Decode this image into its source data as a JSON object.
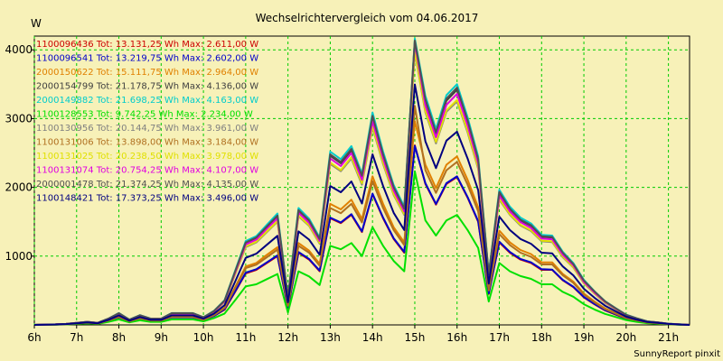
{
  "chart_data": {
    "type": "line",
    "title": "Wechselrichtervergleich vom 04.06.2017",
    "ylabel": "W",
    "xlabel": "",
    "credit": "SunnyReport pinxit",
    "ylim": [
      0,
      4200
    ],
    "xlim": [
      6,
      21.5
    ],
    "grid": true,
    "legend_position": "top-left",
    "y_ticks": [
      1000,
      2000,
      3000,
      4000
    ],
    "x_ticks": [
      6,
      7,
      8,
      9,
      10,
      11,
      12,
      13,
      14,
      15,
      16,
      17,
      18,
      19,
      20,
      21
    ],
    "x_tick_labels": [
      "6h",
      "7h",
      "8h",
      "9h",
      "10h",
      "11h",
      "12h",
      "13h",
      "14h",
      "15h",
      "16h",
      "17h",
      "18h",
      "19h",
      "20h",
      "21h"
    ],
    "x": [
      6.0,
      6.25,
      6.5,
      6.75,
      7.0,
      7.25,
      7.5,
      7.75,
      8.0,
      8.25,
      8.5,
      8.75,
      9.0,
      9.25,
      9.5,
      9.75,
      10.0,
      10.25,
      10.5,
      10.75,
      11.0,
      11.25,
      11.5,
      11.75,
      12.0,
      12.25,
      12.5,
      12.75,
      13.0,
      13.25,
      13.5,
      13.75,
      14.0,
      14.25,
      14.5,
      14.75,
      15.0,
      15.25,
      15.5,
      15.75,
      16.0,
      16.25,
      16.5,
      16.75,
      17.0,
      17.25,
      17.5,
      17.75,
      18.0,
      18.25,
      18.5,
      18.75,
      19.0,
      19.25,
      19.5,
      19.75,
      20.0,
      20.25,
      20.5,
      20.75,
      21.0,
      21.25,
      21.5
    ],
    "series": [
      {
        "name": "1100096436 Tot: 13.131,25 Wh Max: 2.611,00 W",
        "color": "#cc0000",
        "values": [
          0,
          3,
          5,
          10,
          20,
          30,
          20,
          60,
          110,
          50,
          90,
          60,
          60,
          110,
          110,
          110,
          70,
          130,
          220,
          480,
          750,
          800,
          900,
          1000,
          250,
          1050,
          950,
          780,
          1550,
          1480,
          1600,
          1350,
          1900,
          1550,
          1250,
          1050,
          2611,
          2050,
          1750,
          2050,
          2150,
          1850,
          1500,
          450,
          1200,
          1050,
          950,
          900,
          800,
          800,
          650,
          550,
          400,
          300,
          210,
          150,
          90,
          60,
          30,
          20,
          10,
          5,
          0
        ]
      },
      {
        "name": "1100096541 Tot: 13.219,75 Wh Max: 2.602,00 W",
        "color": "#0000cc",
        "values": [
          0,
          3,
          5,
          10,
          20,
          30,
          20,
          60,
          110,
          50,
          90,
          60,
          60,
          110,
          110,
          110,
          70,
          130,
          230,
          490,
          760,
          810,
          910,
          1010,
          255,
          1060,
          960,
          790,
          1560,
          1490,
          1610,
          1360,
          1910,
          1560,
          1260,
          1060,
          2602,
          2060,
          1760,
          2060,
          2160,
          1860,
          1510,
          460,
          1210,
          1060,
          960,
          910,
          810,
          805,
          655,
          555,
          405,
          305,
          215,
          155,
          95,
          62,
          32,
          22,
          11,
          5,
          0
        ]
      },
      {
        "name": "2000150622 Tot: 15.111,75 Wh Max: 2.964,00 W",
        "color": "#e08000",
        "values": [
          0,
          3,
          6,
          11,
          22,
          33,
          22,
          66,
          120,
          55,
          100,
          66,
          66,
          120,
          120,
          120,
          77,
          145,
          250,
          550,
          850,
          900,
          1020,
          1130,
          285,
          1190,
          1080,
          890,
          1760,
          1680,
          1820,
          1540,
          2160,
          1760,
          1420,
          1200,
          2964,
          2330,
          1990,
          2330,
          2450,
          2110,
          1710,
          520,
          1370,
          1200,
          1090,
          1030,
          910,
          910,
          740,
          630,
          455,
          340,
          240,
          170,
          105,
          70,
          35,
          25,
          12,
          6,
          0
        ]
      },
      {
        "name": "2000154799 Tot: 21.178,75 Wh Max: 4.136,00 W",
        "color": "#404040",
        "values": [
          0,
          5,
          8,
          15,
          30,
          45,
          30,
          90,
          170,
          75,
          140,
          90,
          90,
          170,
          170,
          170,
          110,
          200,
          350,
          770,
          1190,
          1260,
          1420,
          1580,
          400,
          1660,
          1510,
          1240,
          2460,
          2350,
          2540,
          2150,
          3020,
          2460,
          1990,
          1680,
          4136,
          3250,
          2780,
          3260,
          3420,
          2950,
          2390,
          730,
          1920,
          1680,
          1520,
          1440,
          1280,
          1270,
          1040,
          880,
          640,
          480,
          340,
          240,
          145,
          95,
          50,
          35,
          17,
          8,
          0
        ]
      },
      {
        "name": "2000149882 Tot: 21.698,25 Wh Max: 4.163,00 W",
        "color": "#00cccc",
        "values": [
          0,
          5,
          8,
          15,
          30,
          45,
          30,
          92,
          172,
          77,
          142,
          92,
          92,
          172,
          172,
          172,
          112,
          205,
          360,
          790,
          1220,
          1290,
          1455,
          1620,
          410,
          1700,
          1545,
          1270,
          2520,
          2410,
          2600,
          2200,
          3090,
          2520,
          2035,
          1720,
          4163,
          3330,
          2850,
          3340,
          3500,
          3020,
          2450,
          745,
          1965,
          1720,
          1560,
          1475,
          1310,
          1300,
          1065,
          900,
          655,
          490,
          345,
          245,
          150,
          97,
          52,
          36,
          18,
          9,
          0
        ]
      },
      {
        "name": "1100128553 Tot: 9.742,25 Wh Max: 2.234,00 W",
        "color": "#00e000",
        "values": [
          0,
          2,
          4,
          7,
          15,
          22,
          15,
          45,
          80,
          37,
          67,
          45,
          45,
          80,
          80,
          80,
          52,
          100,
          165,
          360,
          560,
          590,
          665,
          740,
          180,
          780,
          705,
          580,
          1150,
          1100,
          1190,
          1000,
          1420,
          1150,
          930,
          780,
          2234,
          1520,
          1300,
          1520,
          1600,
          1380,
          1120,
          340,
          900,
          780,
          710,
          670,
          590,
          590,
          480,
          410,
          300,
          225,
          160,
          115,
          70,
          45,
          25,
          17,
          8,
          4,
          0
        ]
      },
      {
        "name": "1100130956 Tot: 20.144,75 Wh Max: 3.961,00 W",
        "color": "#808080",
        "values": [
          0,
          5,
          8,
          14,
          28,
          42,
          28,
          86,
          160,
          72,
          132,
          86,
          86,
          160,
          160,
          160,
          104,
          190,
          335,
          735,
          1130,
          1200,
          1350,
          1500,
          380,
          1580,
          1440,
          1180,
          2340,
          2235,
          2420,
          2040,
          2870,
          2340,
          1890,
          1600,
          3961,
          3090,
          2640,
          3100,
          3250,
          2800,
          2270,
          690,
          1820,
          1600,
          1445,
          1365,
          1215,
          1205,
          985,
          835,
          605,
          455,
          320,
          230,
          140,
          90,
          48,
          33,
          16,
          8,
          0
        ]
      },
      {
        "name": "1100131006 Tot: 13.898,00 Wh Max: 3.184,00 W",
        "color": "#b07020",
        "values": [
          0,
          3,
          5,
          10,
          20,
          31,
          20,
          63,
          117,
          52,
          96,
          63,
          63,
          117,
          117,
          117,
          75,
          140,
          245,
          535,
          825,
          875,
          985,
          1095,
          278,
          1150,
          1050,
          860,
          1700,
          1625,
          1760,
          1490,
          2090,
          1700,
          1380,
          1160,
          3184,
          2250,
          1920,
          2250,
          2370,
          2040,
          1650,
          500,
          1320,
          1160,
          1050,
          990,
          880,
          880,
          720,
          610,
          440,
          330,
          230,
          165,
          100,
          65,
          34,
          24,
          12,
          6,
          0
        ]
      },
      {
        "name": "1100131025 Tot: 20.238,50 Wh Max: 3.978,00 W",
        "color": "#e0e000",
        "values": [
          0,
          5,
          8,
          14,
          28,
          42,
          28,
          87,
          162,
          73,
          134,
          87,
          87,
          162,
          162,
          162,
          105,
          192,
          338,
          740,
          1140,
          1210,
          1360,
          1510,
          383,
          1590,
          1450,
          1190,
          2360,
          2250,
          2440,
          2060,
          2890,
          2360,
          1905,
          1610,
          3978,
          3110,
          2660,
          3120,
          3270,
          2820,
          2290,
          695,
          1835,
          1610,
          1455,
          1375,
          1225,
          1215,
          995,
          840,
          610,
          460,
          325,
          232,
          142,
          92,
          49,
          34,
          16,
          8,
          0
        ]
      },
      {
        "name": "1100131074 Tot: 20.754,25 Wh Max: 4.107,00 W",
        "color": "#e000e0",
        "values": [
          0,
          5,
          8,
          15,
          29,
          44,
          29,
          89,
          166,
          75,
          138,
          89,
          89,
          166,
          166,
          166,
          108,
          197,
          347,
          760,
          1170,
          1240,
          1400,
          1550,
          393,
          1630,
          1485,
          1220,
          2420,
          2310,
          2500,
          2110,
          2960,
          2420,
          1955,
          1650,
          4107,
          3190,
          2730,
          3200,
          3360,
          2900,
          2350,
          715,
          1880,
          1650,
          1495,
          1410,
          1255,
          1245,
          1020,
          865,
          625,
          470,
          335,
          238,
          145,
          94,
          50,
          35,
          17,
          8,
          0
        ]
      },
      {
        "name": "2000001478 Tot: 21.374,25 Wh Max: 4.135,00 W",
        "color": "#505050",
        "values": [
          0,
          5,
          8,
          15,
          30,
          45,
          30,
          91,
          170,
          76,
          140,
          91,
          91,
          170,
          170,
          170,
          110,
          202,
          355,
          778,
          1200,
          1270,
          1430,
          1590,
          403,
          1670,
          1520,
          1250,
          2480,
          2370,
          2560,
          2170,
          3040,
          2480,
          2005,
          1690,
          4135,
          3280,
          2800,
          3290,
          3450,
          2975,
          2410,
          735,
          1935,
          1690,
          1530,
          1450,
          1290,
          1280,
          1050,
          885,
          645,
          485,
          342,
          243,
          147,
          96,
          51,
          35,
          17,
          8,
          0
        ]
      },
      {
        "name": "1100148421 Tot: 17.373,25 Wh Max: 3.496,00 W",
        "color": "#000080",
        "values": [
          0,
          4,
          7,
          12,
          24,
          37,
          24,
          74,
          138,
          62,
          114,
          74,
          74,
          138,
          138,
          138,
          90,
          164,
          288,
          630,
          975,
          1035,
          1165,
          1295,
          328,
          1360,
          1240,
          1020,
          2020,
          1930,
          2085,
          1765,
          2480,
          2020,
          1630,
          1380,
          3496,
          2670,
          2280,
          2680,
          2810,
          2420,
          1960,
          600,
          1575,
          1380,
          1250,
          1180,
          1050,
          1040,
          850,
          720,
          525,
          395,
          280,
          198,
          120,
          78,
          42,
          29,
          14,
          7,
          0
        ]
      }
    ]
  }
}
